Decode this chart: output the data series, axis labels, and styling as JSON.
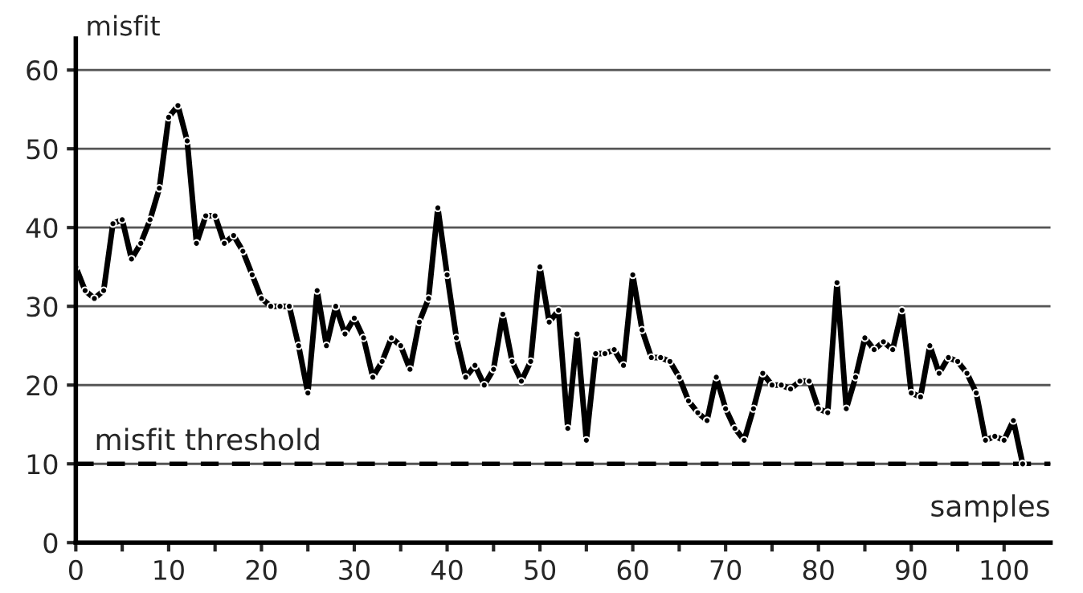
{
  "chart_data": {
    "type": "line",
    "ylabel": "misfit",
    "xlabel": "samples",
    "x": [
      0,
      1,
      2,
      3,
      4,
      5,
      6,
      7,
      8,
      9,
      10,
      11,
      12,
      13,
      14,
      15,
      16,
      17,
      18,
      19,
      20,
      21,
      22,
      23,
      24,
      25,
      26,
      27,
      28,
      29,
      30,
      31,
      32,
      33,
      34,
      35,
      36,
      37,
      38,
      39,
      40,
      41,
      42,
      43,
      44,
      45,
      46,
      47,
      48,
      49,
      50,
      51,
      52,
      53,
      54,
      55,
      56,
      57,
      58,
      59,
      60,
      61,
      62,
      63,
      64,
      65,
      66,
      67,
      68,
      69,
      70,
      71,
      72,
      73,
      74,
      75,
      76,
      77,
      78,
      79,
      80,
      81,
      82,
      83,
      84,
      85,
      86,
      87,
      88,
      89,
      90,
      91,
      92,
      93,
      94,
      95,
      96,
      97,
      98,
      99,
      100,
      101,
      102
    ],
    "series": [
      {
        "color": "#000000",
        "values": [
          35,
          32,
          31,
          32,
          40.5,
          41,
          36,
          38,
          41,
          45,
          54,
          55.5,
          51,
          38,
          41.5,
          41.5,
          38,
          39,
          37,
          34,
          31,
          30,
          30,
          30,
          25,
          19,
          32,
          25,
          30,
          26.5,
          28.5,
          26,
          21,
          23,
          26,
          25,
          22,
          28,
          31,
          42.5,
          34,
          26,
          21,
          22.5,
          20,
          22,
          29,
          23,
          20.5,
          23,
          35,
          28,
          29.5,
          14.5,
          26.5,
          13,
          24,
          24,
          24.5,
          22.5,
          34,
          27,
          23.5,
          23.5,
          23,
          21,
          18,
          16.5,
          15.5,
          21,
          17,
          14.5,
          13,
          17,
          21.5,
          20,
          20,
          19.5,
          20.5,
          20.5,
          17,
          16.5,
          33,
          17,
          21,
          26,
          24.5,
          25.5,
          24.5,
          29.5,
          19,
          18.5,
          25,
          21.5,
          23.5,
          23,
          21.5,
          19,
          13,
          13.5,
          13,
          15.5,
          10
        ]
      }
    ],
    "xlim": [
      0,
      105
    ],
    "ylim": [
      0,
      64
    ],
    "xticks": [
      0,
      {
        "value": 5,
        "label": null
      },
      10,
      {
        "value": 15,
        "label": null
      },
      20,
      {
        "value": 25,
        "label": null
      },
      30,
      {
        "value": 35,
        "label": null
      },
      40,
      {
        "value": 45,
        "label": null
      },
      50,
      {
        "value": 55,
        "label": null
      },
      60,
      {
        "value": 65,
        "label": null
      },
      70,
      {
        "value": 75,
        "label": null
      },
      80,
      {
        "value": 85,
        "label": null
      },
      90,
      {
        "value": 95,
        "label": null
      },
      100
    ],
    "yticks": [
      0,
      10,
      20,
      30,
      40,
      50,
      60
    ],
    "grid": "y",
    "marker": "circle",
    "line_style": "solid",
    "ref_lines": [
      {
        "axis": "y",
        "value": 10,
        "label": "misfit threshold",
        "color": "#000000",
        "line_style": "dashed"
      }
    ]
  }
}
